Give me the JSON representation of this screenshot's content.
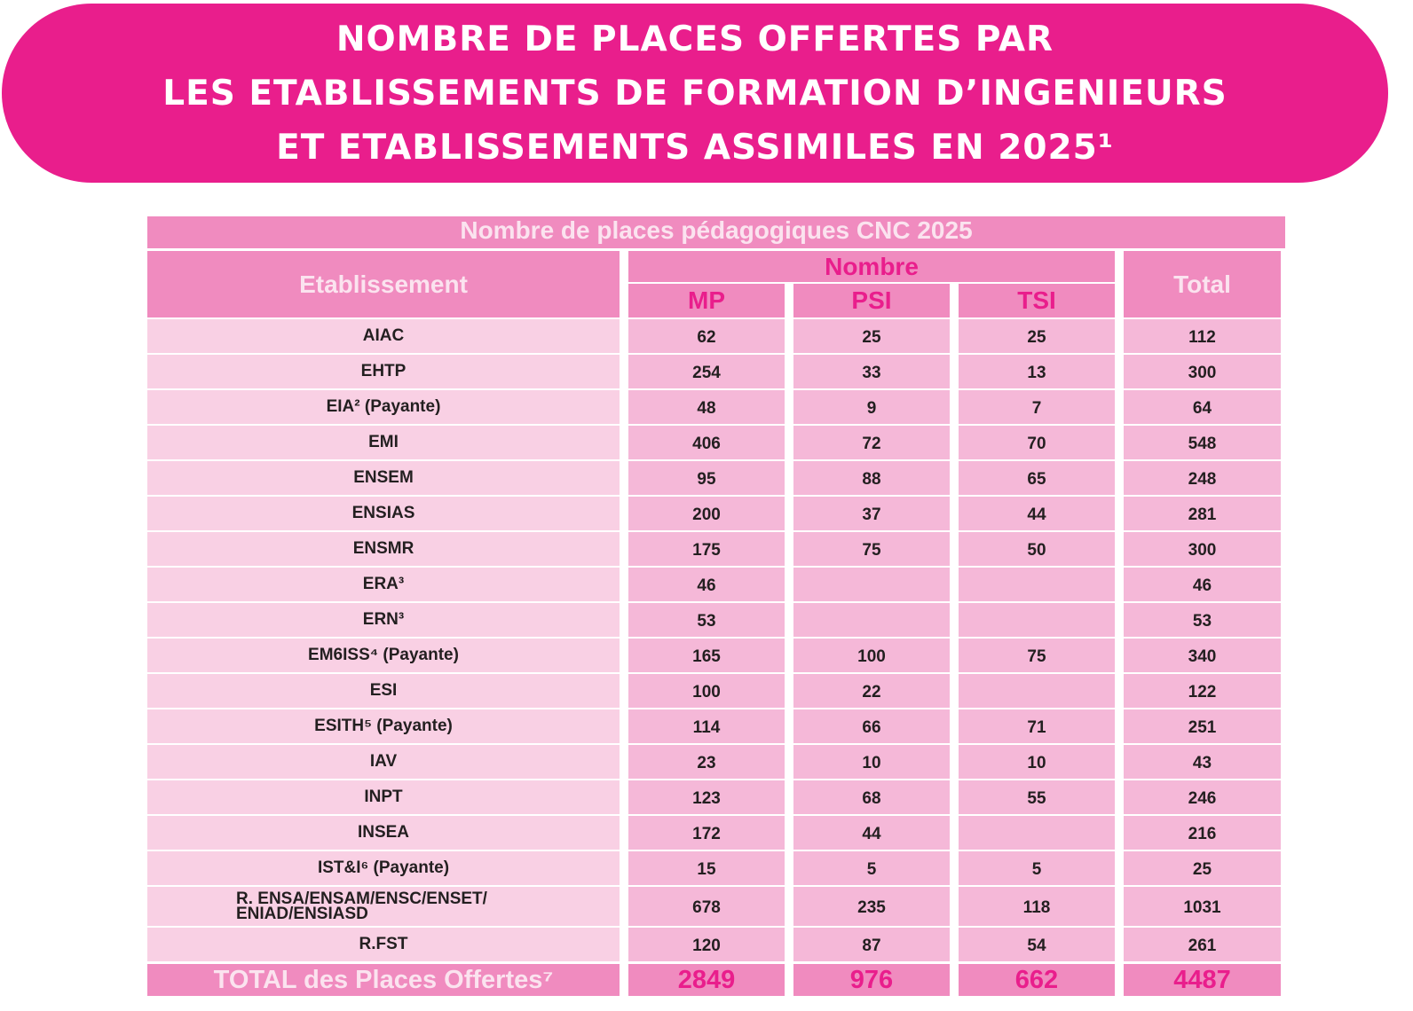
{
  "title": {
    "line1": "NOMBRE DE PLACES OFFERTES PAR",
    "line2": "LES ETABLISSEMENTS DE FORMATION D’INGENIEURS",
    "line3": "ET ETABLISSEMENTS ASSIMILES EN 2025¹"
  },
  "table": {
    "caption": "Nombre de places pédagogiques CNC 2025",
    "headers": {
      "etablissement": "Etablissement",
      "nombre": "Nombre",
      "mp": "MP",
      "psi": "PSI",
      "tsi": "TSI",
      "total": "Total"
    },
    "rows": [
      {
        "name": "AIAC",
        "mp": "62",
        "psi": "25",
        "tsi": "25",
        "total": "112"
      },
      {
        "name": "EHTP",
        "mp": "254",
        "psi": "33",
        "tsi": "13",
        "total": "300"
      },
      {
        "name": "EIA² (Payante)",
        "mp": "48",
        "psi": "9",
        "tsi": "7",
        "total": "64"
      },
      {
        "name": "EMI",
        "mp": "406",
        "psi": "72",
        "tsi": "70",
        "total": "548"
      },
      {
        "name": "ENSEM",
        "mp": "95",
        "psi": "88",
        "tsi": "65",
        "total": "248"
      },
      {
        "name": "ENSIAS",
        "mp": "200",
        "psi": "37",
        "tsi": "44",
        "total": "281"
      },
      {
        "name": "ENSMR",
        "mp": "175",
        "psi": "75",
        "tsi": "50",
        "total": "300"
      },
      {
        "name": "ERA³",
        "mp": "46",
        "psi": "",
        "tsi": "",
        "total": "46"
      },
      {
        "name": "ERN³",
        "mp": "53",
        "psi": "",
        "tsi": "",
        "total": "53"
      },
      {
        "name": "EM6ISS⁴ (Payante)",
        "mp": "165",
        "psi": "100",
        "tsi": "75",
        "total": "340"
      },
      {
        "name": "ESI",
        "mp": "100",
        "psi": "22",
        "tsi": "",
        "total": "122"
      },
      {
        "name": "ESITH⁵ (Payante)",
        "mp": "114",
        "psi": "66",
        "tsi": "71",
        "total": "251"
      },
      {
        "name": "IAV",
        "mp": "23",
        "psi": "10",
        "tsi": "10",
        "total": "43"
      },
      {
        "name": "INPT",
        "mp": "123",
        "psi": "68",
        "tsi": "55",
        "total": "246"
      },
      {
        "name": "INSEA",
        "mp": "172",
        "psi": "44",
        "tsi": "",
        "total": "216"
      },
      {
        "name": "IST&I⁶ (Payante)",
        "mp": "15",
        "psi": "5",
        "tsi": "5",
        "total": "25"
      },
      {
        "name": "R. ENSA/ENSAM/ENSC/ENSET/ ENIAD/ENSIASD",
        "mp": "678",
        "psi": "235",
        "tsi": "118",
        "total": "1031"
      },
      {
        "name": "R.FST",
        "mp": "120",
        "psi": "87",
        "tsi": "54",
        "total": "261"
      }
    ],
    "total_row": {
      "name": "TOTAL des Places Offertes⁷",
      "mp": "2849",
      "psi": "976",
      "tsi": "662",
      "total": "4487"
    }
  },
  "colors": {
    "brand": "#e91e8c",
    "header": "#f08bbf",
    "name_cell": "#f9d0e4",
    "num_cell": "#f5b8d8"
  }
}
